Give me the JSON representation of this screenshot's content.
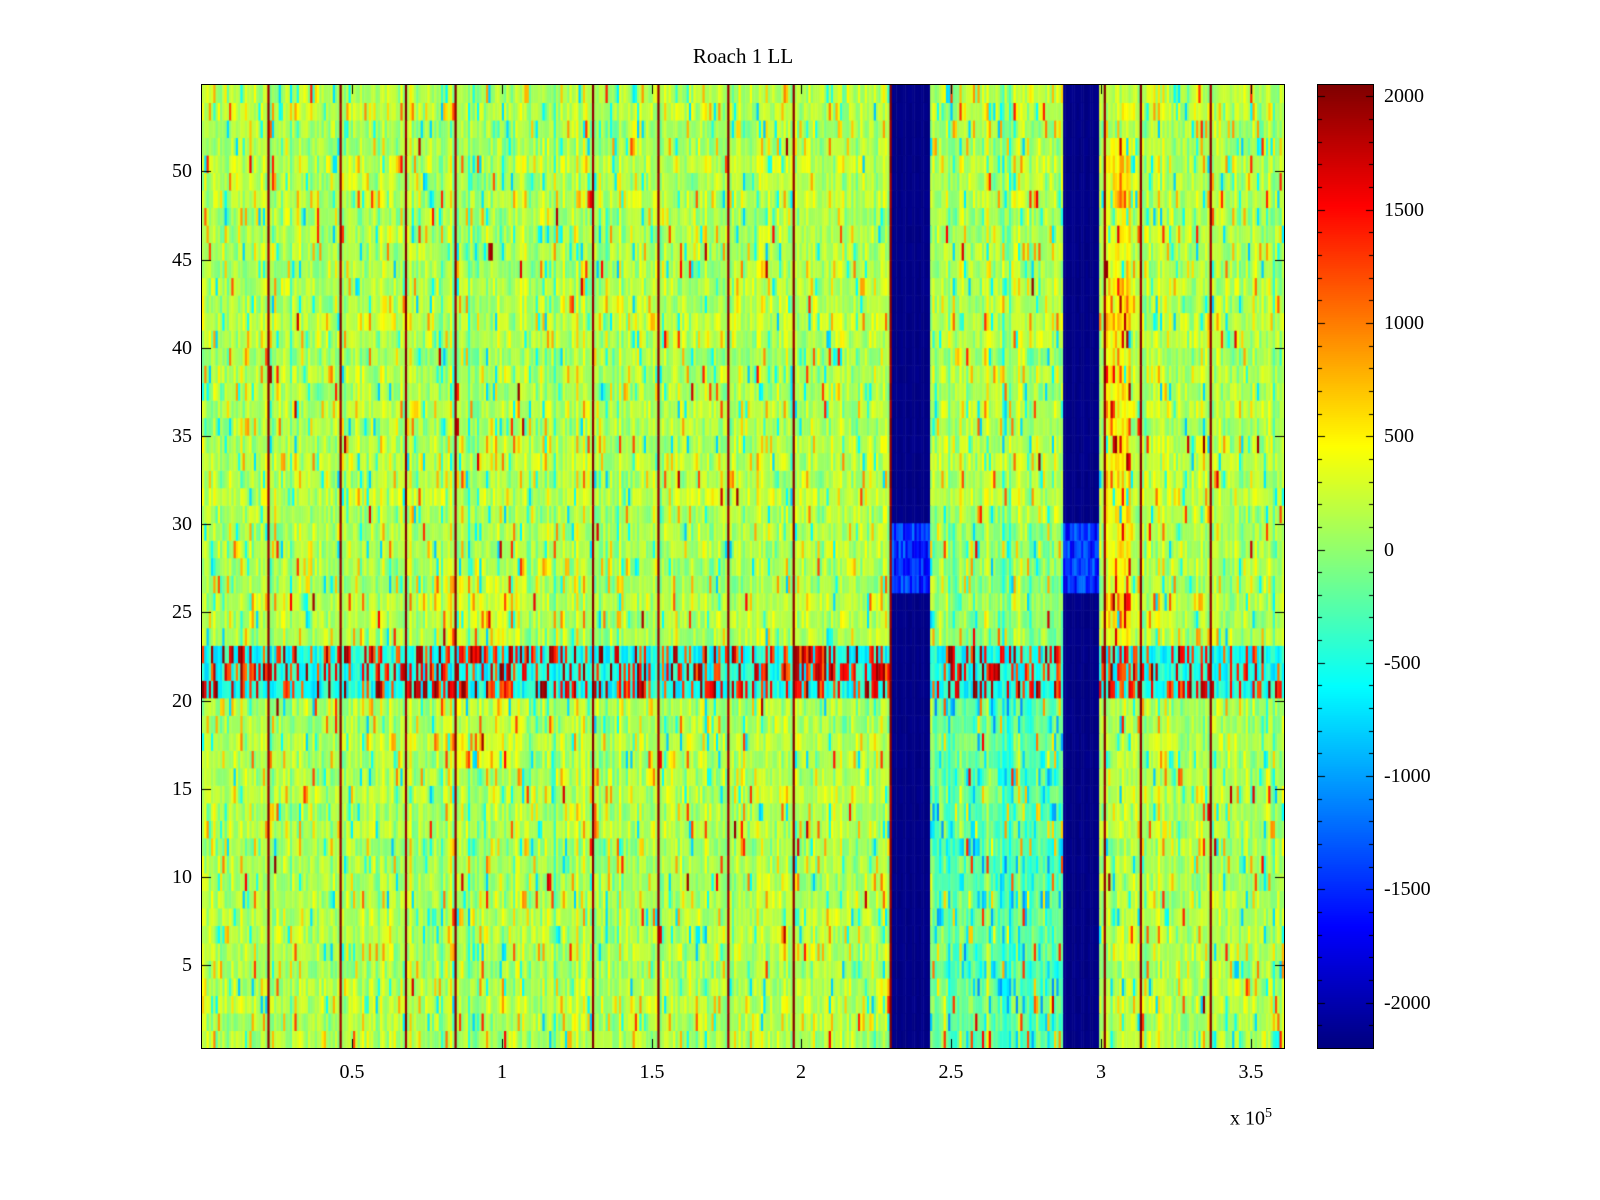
{
  "figure": {
    "background": "#ffffff",
    "axis_color": "#000000"
  },
  "chart_data": {
    "type": "heatmap",
    "title": "Roach 1 LL",
    "colormap": "jet",
    "x_axis": {
      "ticks": [
        0.5,
        1,
        1.5,
        2,
        2.5,
        3,
        3.5
      ],
      "tick_labels": [
        "0.5",
        "1",
        "1.5",
        "2",
        "2.5",
        "3",
        "3.5"
      ],
      "multiplier_prefix": "x 10",
      "multiplier_exponent": "5",
      "range": [
        0,
        3.61
      ]
    },
    "y_axis": {
      "ticks": [
        5,
        10,
        15,
        20,
        25,
        30,
        35,
        40,
        45,
        50
      ],
      "tick_labels": [
        "5",
        "10",
        "15",
        "20",
        "25",
        "30",
        "35",
        "40",
        "45",
        "50"
      ],
      "range": [
        0.3,
        54.9
      ]
    },
    "colorbar": {
      "range": [
        -2200,
        2050
      ],
      "tick_values": [
        2000,
        1500,
        1000,
        500,
        0,
        -500,
        -1000,
        -1500,
        -2000
      ],
      "tick_labels": [
        "2000",
        "1500",
        "1000",
        "500",
        "0",
        "-500",
        "-1000",
        "-1500",
        "-2000"
      ],
      "minor_tick_step": 100,
      "colormap": "jet"
    },
    "grid": {
      "rows": 55,
      "cols": 480
    },
    "features": {
      "seed": 20240613,
      "background_mean": 120,
      "noise_amplitude": 340,
      "blue_bands_x": [
        [
          2.305,
          2.43
        ],
        [
          2.873,
          2.997
        ]
      ],
      "blue_band_value": -2200,
      "blue_band_light_rows": [
        27,
        30
      ],
      "red_line_x": [
        0.225,
        0.463,
        0.683,
        0.845,
        1.305,
        1.52,
        1.755,
        1.975,
        2.297,
        3.01,
        3.13,
        3.367
      ],
      "red_line_value": 1950,
      "speckle_band_rows": [
        21,
        23
      ],
      "speckle_band_clusters_x": [
        [
          0.75,
          1.05
        ],
        [
          1.95,
          2.3
        ],
        [
          3.0,
          3.12
        ]
      ],
      "warm_patch_left": {
        "x": [
          0.78,
          1.06
        ],
        "rows": [
          17,
          28
        ]
      },
      "warm_patch_right": {
        "x": [
          3.005,
          3.1
        ],
        "rows": [
          23,
          52
        ]
      },
      "cool_region": {
        "x": [
          2.44,
          2.873
        ],
        "rows": [
          1,
          22
        ]
      }
    }
  }
}
